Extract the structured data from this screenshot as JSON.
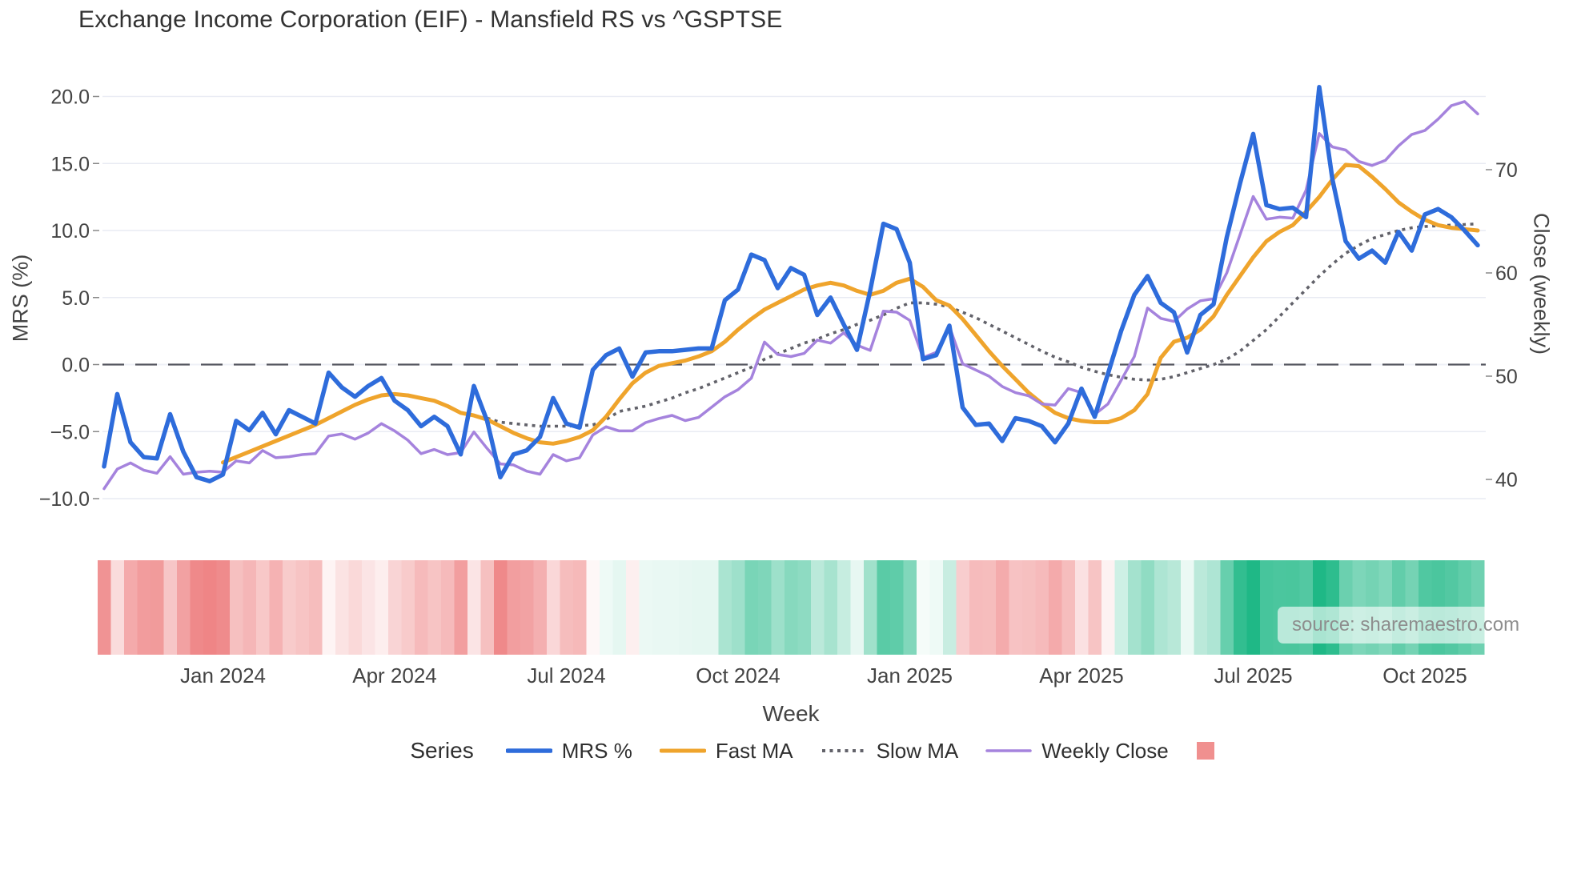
{
  "title": "Exchange Income Corporation (EIF) - Mansfield RS vs ^GSPTSE",
  "source_note": "source: sharemaestro.com",
  "legend": {
    "title": "Series",
    "items": [
      {
        "label": "MRS %",
        "type": "line",
        "color": "#2e6cdb",
        "width": 5.5
      },
      {
        "label": "Fast MA",
        "type": "line",
        "color": "#efa42c",
        "width": 5
      },
      {
        "label": "Slow MA",
        "type": "dotted",
        "color": "#62626a",
        "width": 4
      },
      {
        "label": "Weekly Close",
        "type": "line",
        "color": "#a583dd",
        "width": 3.5
      },
      {
        "label": "",
        "type": "square",
        "color": "#f0908f"
      }
    ]
  },
  "chart_data": {
    "type": "line",
    "x_unit": "week_index",
    "n_weeks": 105,
    "x_axis": {
      "title": "Week",
      "ticks": [
        {
          "week": 9,
          "label": "Jan 2024"
        },
        {
          "week": 22,
          "label": "Apr 2024"
        },
        {
          "week": 35,
          "label": "Jul 2024"
        },
        {
          "week": 48,
          "label": "Oct 2024"
        },
        {
          "week": 61,
          "label": "Jan 2025"
        },
        {
          "week": 74,
          "label": "Apr 2025"
        },
        {
          "week": 87,
          "label": "Jul 2025"
        },
        {
          "week": 100,
          "label": "Oct 2025"
        }
      ]
    },
    "y_left": {
      "title": "MRS (%)",
      "range": [
        -12.3,
        22.2
      ],
      "zero_line": true,
      "ticks": [
        {
          "label": "20.0",
          "value": 20
        },
        {
          "label": "15.0",
          "value": 15
        },
        {
          "label": "10.0",
          "value": 10
        },
        {
          "label": "5.0",
          "value": 5
        },
        {
          "label": "0.0",
          "value": 0
        },
        {
          "label": "−5.0",
          "value": -5
        },
        {
          "label": "−10.0",
          "value": -10
        }
      ]
    },
    "y_right": {
      "title": "Close (weekly)",
      "range": [
        36.2,
        79.8
      ],
      "ticks": [
        {
          "label": "70",
          "value": 70
        },
        {
          "label": "60",
          "value": 60
        },
        {
          "label": "50",
          "value": 50
        },
        {
          "label": "40",
          "value": 40
        }
      ]
    },
    "series": [
      {
        "name": "MRS %",
        "axis": "left",
        "color": "#2e6cdb",
        "width": 5.5,
        "style": "solid",
        "values": [
          -7.6,
          -2.2,
          -5.8,
          -6.9,
          -7.0,
          -3.7,
          -6.5,
          -8.4,
          -8.7,
          -8.2,
          -4.2,
          -4.9,
          -3.6,
          -5.2,
          -3.4,
          -3.9,
          -4.4,
          -0.6,
          -1.7,
          -2.4,
          -1.6,
          -1.0,
          -2.7,
          -3.4,
          -4.6,
          -3.9,
          -4.6,
          -6.7,
          -1.6,
          -4.2,
          -8.4,
          -6.7,
          -6.4,
          -5.4,
          -2.5,
          -4.4,
          -4.7,
          -0.4,
          0.7,
          1.2,
          -0.9,
          0.9,
          1.0,
          1.0,
          1.1,
          1.2,
          1.2,
          4.8,
          5.6,
          8.2,
          7.8,
          5.7,
          7.2,
          6.7,
          3.7,
          5.0,
          3.0,
          1.1,
          5.5,
          10.5,
          10.1,
          7.6,
          0.4,
          0.7,
          2.9,
          -3.2,
          -4.5,
          -4.4,
          -5.7,
          -4.0,
          -4.2,
          -4.6,
          -5.8,
          -4.4,
          -1.8,
          -3.9,
          -0.7,
          2.5,
          5.2,
          6.6,
          4.6,
          3.9,
          0.9,
          3.7,
          4.5,
          9.5,
          13.5,
          17.2,
          11.9,
          11.6,
          11.7,
          11.0,
          20.7,
          13.8,
          9.2,
          7.9,
          8.5,
          7.6,
          9.9,
          8.5,
          11.2,
          11.6,
          11.0,
          10.0,
          8.9
        ]
      },
      {
        "name": "Fast MA",
        "axis": "left",
        "color": "#efa42c",
        "width": 5,
        "style": "solid",
        "values": [
          null,
          null,
          null,
          null,
          null,
          null,
          null,
          null,
          null,
          -7.3,
          -6.9,
          -6.5,
          -6.1,
          -5.7,
          -5.3,
          -4.9,
          -4.5,
          -4.0,
          -3.5,
          -3.0,
          -2.6,
          -2.3,
          -2.2,
          -2.3,
          -2.5,
          -2.7,
          -3.1,
          -3.6,
          -3.8,
          -4.1,
          -4.6,
          -5.1,
          -5.5,
          -5.8,
          -5.9,
          -5.7,
          -5.4,
          -4.9,
          -3.9,
          -2.6,
          -1.4,
          -0.6,
          -0.1,
          0.1,
          0.3,
          0.6,
          1.0,
          1.7,
          2.6,
          3.4,
          4.1,
          4.6,
          5.1,
          5.6,
          5.9,
          6.1,
          5.9,
          5.5,
          5.2,
          5.5,
          6.1,
          6.4,
          5.8,
          4.8,
          4.4,
          3.4,
          2.2,
          1.0,
          -0.1,
          -1.1,
          -2.1,
          -2.9,
          -3.6,
          -4.0,
          -4.2,
          -4.3,
          -4.3,
          -4.0,
          -3.4,
          -2.2,
          0.5,
          1.7,
          2.0,
          2.6,
          3.6,
          5.2,
          6.6,
          8.0,
          9.2,
          9.9,
          10.4,
          11.4,
          12.5,
          13.8,
          14.9,
          14.8,
          14.0,
          13.1,
          12.1,
          11.4,
          10.8,
          10.4,
          10.2,
          10.1,
          10.0
        ]
      },
      {
        "name": "Slow MA",
        "axis": "left",
        "color": "#62626a",
        "width": 3.6,
        "style": "dotted",
        "values": [
          null,
          null,
          null,
          null,
          null,
          null,
          null,
          null,
          null,
          null,
          null,
          null,
          null,
          null,
          null,
          null,
          null,
          null,
          null,
          null,
          null,
          null,
          null,
          null,
          null,
          null,
          null,
          null,
          null,
          -4.0,
          -4.3,
          -4.4,
          -4.5,
          -4.6,
          -4.6,
          -4.6,
          -4.55,
          -4.5,
          -4.1,
          -3.5,
          -3.3,
          -3.1,
          -2.8,
          -2.5,
          -2.1,
          -1.8,
          -1.4,
          -1.0,
          -0.6,
          -0.2,
          0.4,
          0.8,
          1.2,
          1.6,
          1.9,
          2.3,
          2.6,
          3.0,
          3.3,
          3.7,
          4.2,
          4.6,
          4.6,
          4.5,
          4.3,
          3.9,
          3.5,
          3.0,
          2.5,
          2.0,
          1.5,
          1.0,
          0.55,
          0.2,
          -0.2,
          -0.5,
          -0.75,
          -0.95,
          -1.1,
          -1.15,
          -1.1,
          -0.9,
          -0.6,
          -0.3,
          0.0,
          0.4,
          1.0,
          1.8,
          2.6,
          3.6,
          4.6,
          5.6,
          6.6,
          7.5,
          8.3,
          8.9,
          9.4,
          9.7,
          10.0,
          10.2,
          10.3,
          10.35,
          10.4,
          10.45,
          10.5
        ]
      },
      {
        "name": "Weekly Close",
        "axis": "right",
        "color": "#a583dd",
        "width": 3.5,
        "style": "solid",
        "values": [
          39.1,
          41.0,
          41.6,
          40.9,
          40.6,
          42.2,
          40.5,
          40.7,
          40.8,
          40.7,
          41.8,
          41.6,
          42.8,
          42.1,
          42.2,
          42.4,
          42.5,
          44.2,
          44.4,
          43.9,
          44.5,
          45.4,
          44.7,
          43.8,
          42.5,
          42.9,
          42.4,
          42.6,
          44.6,
          43.0,
          41.5,
          41.4,
          40.8,
          40.5,
          42.4,
          41.8,
          42.1,
          44.3,
          45.1,
          44.7,
          44.7,
          45.5,
          45.9,
          46.2,
          45.7,
          46.0,
          47.0,
          48.0,
          48.7,
          49.8,
          53.3,
          52.1,
          51.9,
          52.2,
          53.5,
          53.2,
          54.2,
          53.0,
          52.5,
          56.3,
          56.2,
          55.4,
          51.8,
          52.3,
          54.8,
          51.2,
          50.6,
          50.0,
          49.0,
          48.4,
          48.1,
          47.3,
          47.2,
          48.8,
          48.4,
          46.3,
          47.3,
          49.6,
          51.9,
          56.6,
          55.6,
          55.3,
          56.5,
          57.3,
          57.5,
          60.0,
          63.7,
          67.4,
          65.2,
          65.4,
          65.3,
          68.0,
          73.5,
          72.2,
          71.9,
          70.8,
          70.4,
          70.9,
          72.3,
          73.4,
          73.8,
          74.9,
          76.2,
          76.6,
          75.4
        ]
      }
    ],
    "heatmap": {
      "based_on": "MRS %",
      "positive_color": "#1fb886",
      "negative_color": "#ee8182",
      "neutral_color": "#ffffff"
    }
  },
  "colors": {
    "grid": "#e9ebf3",
    "zero_line": "#53555e",
    "tick_text": "#444444",
    "title_text": "#323232"
  }
}
